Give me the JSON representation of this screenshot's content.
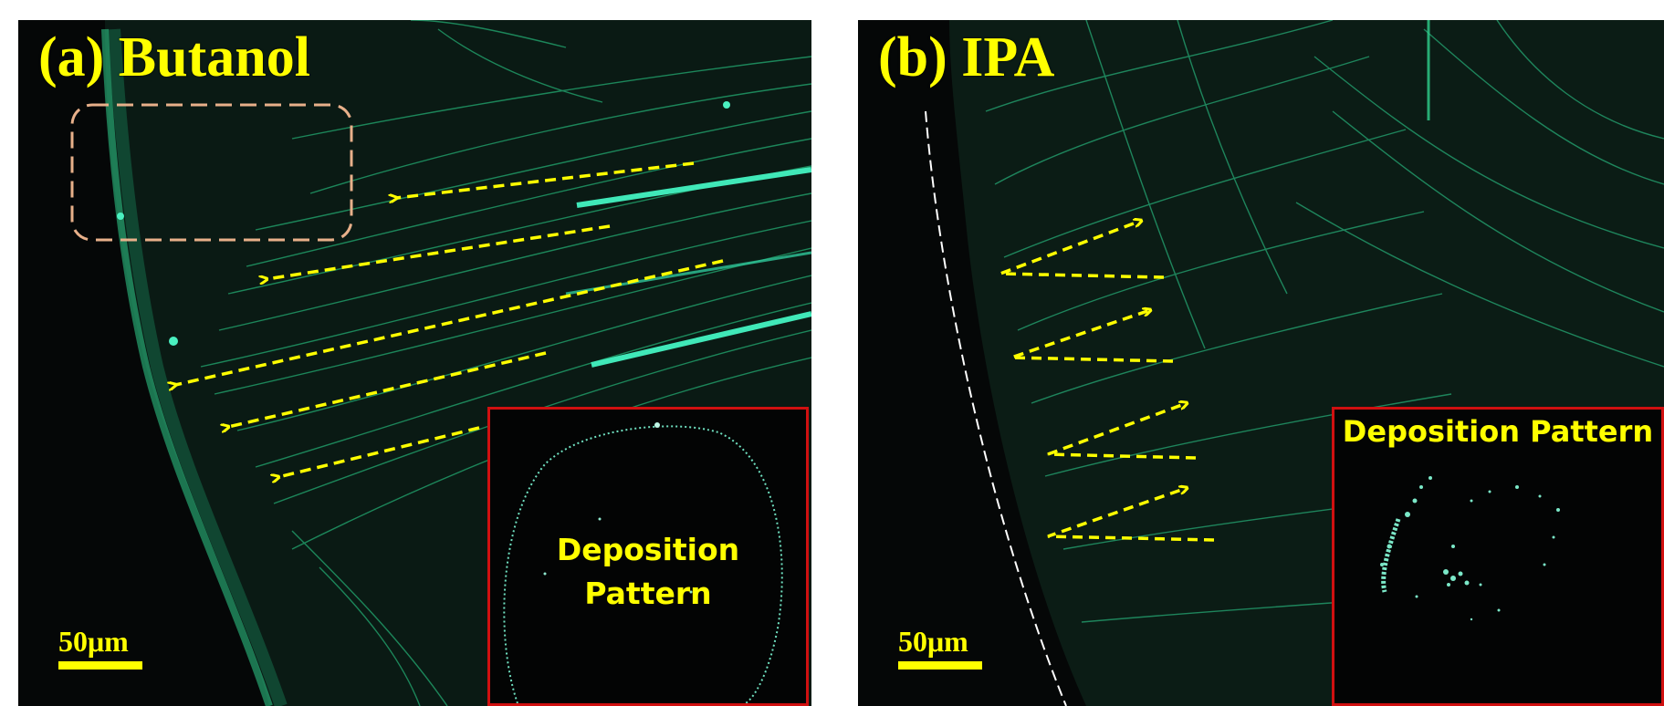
{
  "figure": {
    "panel_a": {
      "title": "(a) Butanol",
      "scale_bar": "50μm",
      "inset": {
        "line1": "Deposition",
        "line2": "Pattern"
      }
    },
    "panel_b": {
      "title": "(b) IPA",
      "scale_bar": "50μm",
      "inset": {
        "label": "Deposition Pattern"
      }
    }
  },
  "colors": {
    "annotation": "#ffff00",
    "inset_border": "#d01010",
    "particle_tracks": "#2bd38a",
    "highlight_box": "#e8b08a"
  }
}
